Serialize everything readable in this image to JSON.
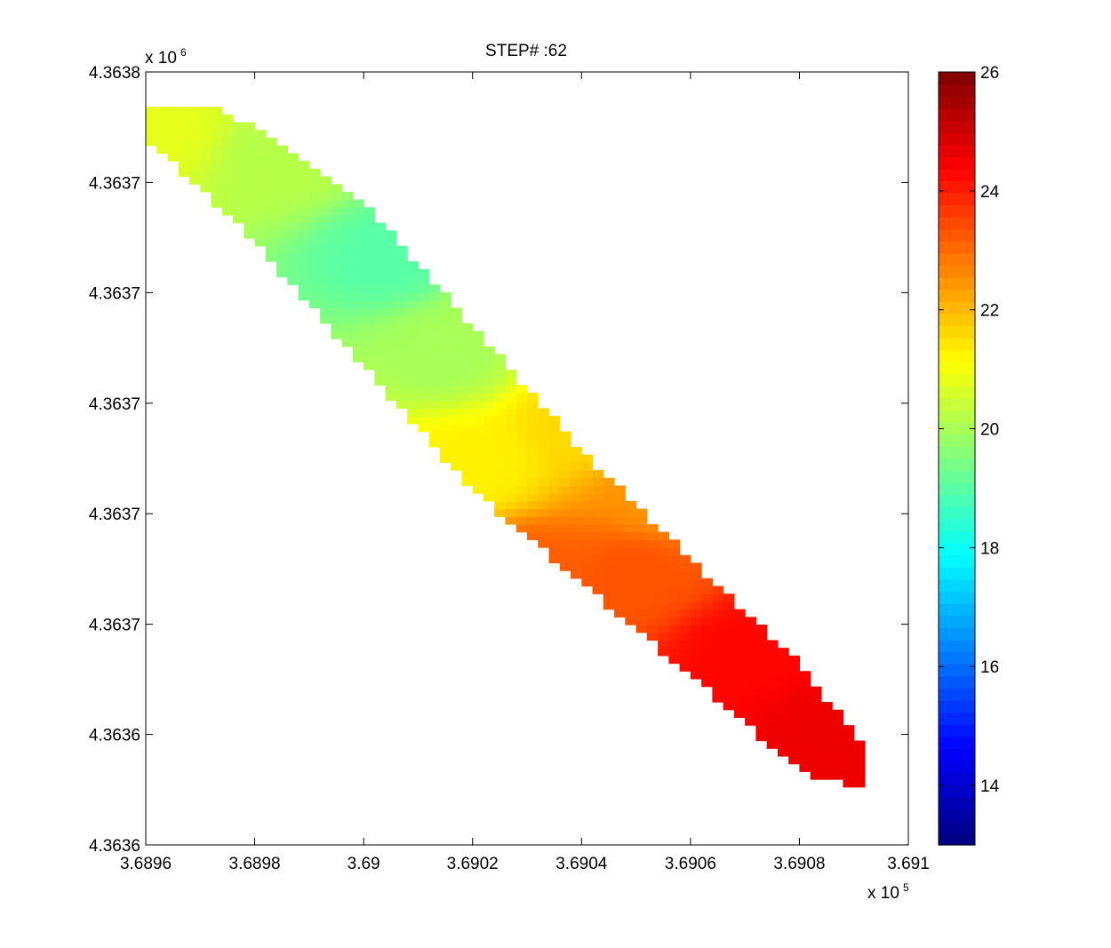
{
  "chart_data": {
    "type": "heatmap",
    "title": "STEP# :62",
    "x_exponent_label": "x 10",
    "x_exponent": "5",
    "y_exponent_label": "x 10",
    "y_exponent": "6",
    "xlim": [
      368960,
      369100
    ],
    "ylim": [
      4363600,
      4363800
    ],
    "x_ticks": [
      368960,
      368980,
      369000,
      369020,
      369040,
      369060,
      369080,
      369100
    ],
    "x_tick_labels": [
      "3.6896",
      "3.6898",
      "3.69",
      "3.6902",
      "3.6904",
      "3.6906",
      "3.6908",
      "3.691"
    ],
    "y_ticks": [
      4363600,
      4363628.6,
      4363657.1,
      4363685.7,
      4363714.3,
      4363742.9,
      4363771.4,
      4363800
    ],
    "y_tick_labels": [
      "4.3636",
      "4.3636",
      "4.3637",
      "4.3637",
      "4.3637",
      "4.3637",
      "4.3637",
      "4.3638"
    ],
    "colorbar": {
      "colormap": "jet",
      "clim": [
        13,
        26
      ],
      "ticks": [
        14,
        16,
        18,
        20,
        22,
        24,
        26
      ],
      "tick_labels": [
        "14",
        "16",
        "18",
        "20",
        "22",
        "24",
        "26"
      ]
    },
    "grid": false,
    "cell_size": 2,
    "field": {
      "description_of_domain": "diagonal band from upper-left to lower-right",
      "centerline": [
        [
          368961,
          4363790
        ],
        [
          368980,
          4363771
        ],
        [
          369000,
          4363745
        ],
        [
          369020,
          4363713
        ],
        [
          369040,
          4363685
        ],
        [
          369060,
          4363659
        ],
        [
          369080,
          4363633
        ],
        [
          369091,
          4363621
        ]
      ],
      "half_width_y": [
        8,
        15,
        21,
        21,
        17,
        15,
        14,
        6
      ],
      "top_clip_y": 4363790,
      "value_anchors": [
        {
          "x": 368962,
          "y": 4363786,
          "value": 20.8
        },
        {
          "x": 368985,
          "y": 4363778,
          "value": 20.2
        },
        {
          "x": 369005,
          "y": 4363752,
          "value": 19.0
        },
        {
          "x": 369015,
          "y": 4363728,
          "value": 20.0
        },
        {
          "x": 369030,
          "y": 4363742,
          "value": 20.3
        },
        {
          "x": 369040,
          "y": 4363710,
          "value": 21.6
        },
        {
          "x": 369020,
          "y": 4363698,
          "value": 21.3
        },
        {
          "x": 369050,
          "y": 4363670,
          "value": 23.3
        },
        {
          "x": 369070,
          "y": 4363650,
          "value": 24.3
        },
        {
          "x": 369085,
          "y": 4363630,
          "value": 24.6
        },
        {
          "x": 369055,
          "y": 4363690,
          "value": 22.5
        },
        {
          "x": 369030,
          "y": 4363670,
          "value": 23.2
        }
      ]
    }
  }
}
